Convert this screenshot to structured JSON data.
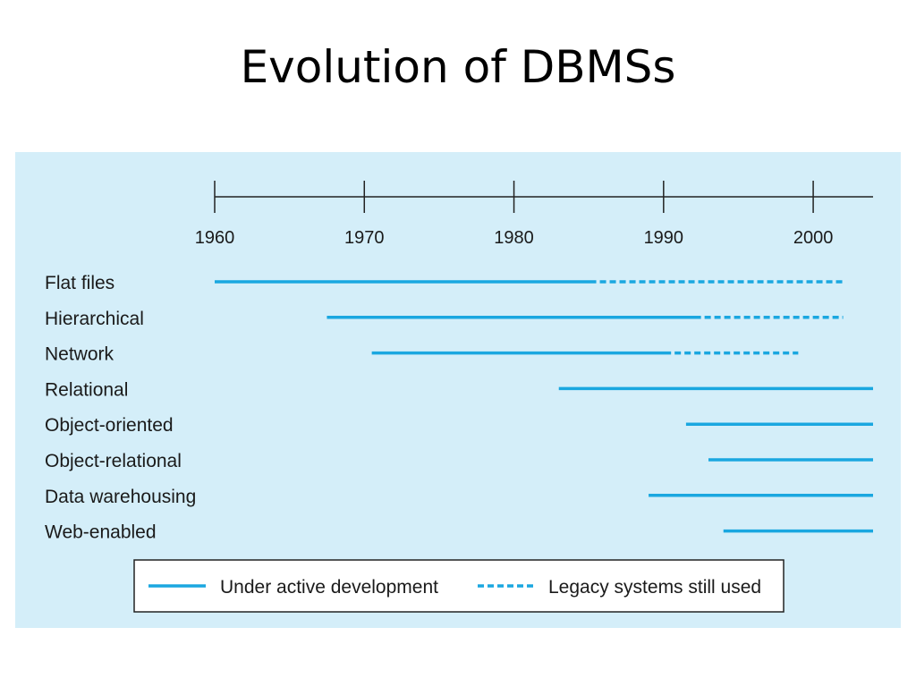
{
  "slide": {
    "title": "Evolution of DBMSs"
  },
  "colors": {
    "panel_bg": "#d4eef9",
    "line": "#1aa7e0",
    "axis": "#222222"
  },
  "chart_data": {
    "type": "timeline",
    "title": "",
    "x_range": [
      1960,
      2004
    ],
    "ticks": [
      1960,
      1970,
      1980,
      1990,
      2000
    ],
    "tick_labels": [
      "1960",
      "1970",
      "1980",
      "1990",
      "2000"
    ],
    "rows": [
      {
        "label": "Flat files",
        "active": [
          1960,
          1985.5
        ],
        "legacy": [
          1985.5,
          2002
        ]
      },
      {
        "label": "Hierarchical",
        "active": [
          1967.5,
          1992.5
        ],
        "legacy": [
          1992.5,
          2002
        ]
      },
      {
        "label": "Network",
        "active": [
          1970.5,
          1990.5
        ],
        "legacy": [
          1990.5,
          1999
        ]
      },
      {
        "label": "Relational",
        "active": [
          1983,
          2004
        ],
        "legacy": null
      },
      {
        "label": "Object-oriented",
        "active": [
          1991.5,
          2004
        ],
        "legacy": null
      },
      {
        "label": "Object-relational",
        "active": [
          1993,
          2004
        ],
        "legacy": null
      },
      {
        "label": "Data warehousing",
        "active": [
          1989,
          2004
        ],
        "legacy": null
      },
      {
        "label": "Web-enabled",
        "active": [
          1994,
          2004
        ],
        "legacy": null
      }
    ],
    "legend": {
      "active_label": "Under active development",
      "legacy_label": "Legacy systems still used",
      "placement": "bottom"
    }
  }
}
